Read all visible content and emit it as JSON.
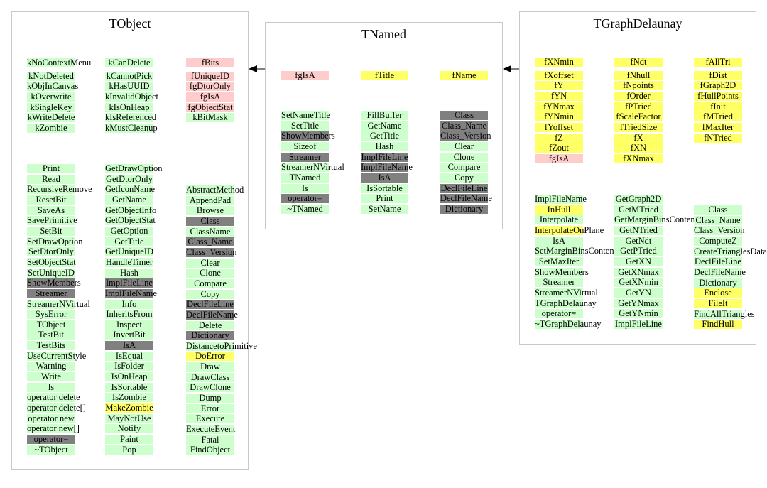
{
  "colors": {
    "green": "#ccffcc",
    "yellow": "#ffff66",
    "pink": "#ffcccc",
    "gray": "#808080"
  },
  "panels": [
    {
      "id": "tobject",
      "title": "TObject",
      "columns": [
        {
          "id": "tobject-enum-1",
          "items": [
            {
              "t": "kNoContextMenu",
              "c": "green"
            },
            {
              "t": "kNotDeleted",
              "c": "green"
            },
            {
              "t": "kObjInCanvas",
              "c": "green"
            },
            {
              "t": "kOverwrite",
              "c": "green"
            },
            {
              "t": "kSingleKey",
              "c": "green"
            },
            {
              "t": "kWriteDelete",
              "c": "green"
            },
            {
              "t": "kZombie",
              "c": "green"
            }
          ]
        },
        {
          "id": "tobject-enum-2",
          "items": [
            {
              "t": "kCanDelete",
              "c": "green"
            },
            {
              "t": "kCannotPick",
              "c": "green"
            },
            {
              "t": "kHasUUID",
              "c": "green"
            },
            {
              "t": "kInvalidObject",
              "c": "green"
            },
            {
              "t": "kIsOnHeap",
              "c": "green"
            },
            {
              "t": "kIsReferenced",
              "c": "green"
            },
            {
              "t": "kMustCleanup",
              "c": "green"
            }
          ]
        },
        {
          "id": "tobject-members",
          "items": [
            {
              "t": "fBits",
              "c": "pink"
            },
            {
              "t": "fUniqueID",
              "c": "pink"
            },
            {
              "t": "fgDtorOnly",
              "c": "pink"
            },
            {
              "t": "fgIsA",
              "c": "pink"
            },
            {
              "t": "fgObjectStat",
              "c": "pink"
            },
            {
              "t": "kBitMask",
              "c": "green"
            }
          ]
        },
        {
          "id": "tobject-methods-1",
          "items": [
            {
              "t": "Print",
              "c": "green"
            },
            {
              "t": "Read",
              "c": "green"
            },
            {
              "t": "RecursiveRemove",
              "c": "green"
            },
            {
              "t": "ResetBit",
              "c": "green"
            },
            {
              "t": "SaveAs",
              "c": "green"
            },
            {
              "t": "SavePrimitive",
              "c": "green"
            },
            {
              "t": "SetBit",
              "c": "green"
            },
            {
              "t": "SetDrawOption",
              "c": "green"
            },
            {
              "t": "SetDtorOnly",
              "c": "green"
            },
            {
              "t": "SetObjectStat",
              "c": "green"
            },
            {
              "t": "SetUniqueID",
              "c": "green"
            },
            {
              "t": "ShowMembers",
              "c": "gray"
            },
            {
              "t": "Streamer",
              "c": "gray"
            },
            {
              "t": "StreamerNVirtual",
              "c": "green"
            },
            {
              "t": "SysError",
              "c": "green"
            },
            {
              "t": "TObject",
              "c": "green"
            },
            {
              "t": "TestBit",
              "c": "green"
            },
            {
              "t": "TestBits",
              "c": "green"
            },
            {
              "t": "UseCurrentStyle",
              "c": "green"
            },
            {
              "t": "Warning",
              "c": "green"
            },
            {
              "t": "Write",
              "c": "green"
            },
            {
              "t": "ls",
              "c": "green"
            },
            {
              "t": "operator delete",
              "c": "green"
            },
            {
              "t": "operator delete[]",
              "c": "green"
            },
            {
              "t": "operator new",
              "c": "green"
            },
            {
              "t": "operator new[]",
              "c": "green"
            },
            {
              "t": "operator=",
              "c": "gray"
            },
            {
              "t": "~TObject",
              "c": "green"
            }
          ]
        },
        {
          "id": "tobject-methods-2",
          "items": [
            {
              "t": "GetDrawOption",
              "c": "green"
            },
            {
              "t": "GetDtorOnly",
              "c": "green"
            },
            {
              "t": "GetIconName",
              "c": "green"
            },
            {
              "t": "GetName",
              "c": "green"
            },
            {
              "t": "GetObjectInfo",
              "c": "green"
            },
            {
              "t": "GetObjectStat",
              "c": "green"
            },
            {
              "t": "GetOption",
              "c": "green"
            },
            {
              "t": "GetTitle",
              "c": "green"
            },
            {
              "t": "GetUniqueID",
              "c": "green"
            },
            {
              "t": "HandleTimer",
              "c": "green"
            },
            {
              "t": "Hash",
              "c": "green"
            },
            {
              "t": "ImplFileLine",
              "c": "gray"
            },
            {
              "t": "ImplFileName",
              "c": "gray"
            },
            {
              "t": "Info",
              "c": "green"
            },
            {
              "t": "InheritsFrom",
              "c": "green"
            },
            {
              "t": "Inspect",
              "c": "green"
            },
            {
              "t": "InvertBit",
              "c": "green"
            },
            {
              "t": "IsA",
              "c": "gray"
            },
            {
              "t": "IsEqual",
              "c": "green"
            },
            {
              "t": "IsFolder",
              "c": "green"
            },
            {
              "t": "IsOnHeap",
              "c": "green"
            },
            {
              "t": "IsSortable",
              "c": "green"
            },
            {
              "t": "IsZombie",
              "c": "green"
            },
            {
              "t": "MakeZombie",
              "c": "yellow"
            },
            {
              "t": "MayNotUse",
              "c": "green"
            },
            {
              "t": "Notify",
              "c": "green"
            },
            {
              "t": "Paint",
              "c": "green"
            },
            {
              "t": "Pop",
              "c": "green"
            }
          ]
        },
        {
          "id": "tobject-methods-3",
          "items": [
            {
              "t": "AbstractMethod",
              "c": "green"
            },
            {
              "t": "AppendPad",
              "c": "green"
            },
            {
              "t": "Browse",
              "c": "green"
            },
            {
              "t": "Class",
              "c": "gray"
            },
            {
              "t": "ClassName",
              "c": "green"
            },
            {
              "t": "Class_Name",
              "c": "gray"
            },
            {
              "t": "Class_Version",
              "c": "gray"
            },
            {
              "t": "Clear",
              "c": "green"
            },
            {
              "t": "Clone",
              "c": "green"
            },
            {
              "t": "Compare",
              "c": "green"
            },
            {
              "t": "Copy",
              "c": "green"
            },
            {
              "t": "DeclFileLine",
              "c": "gray"
            },
            {
              "t": "DeclFileName",
              "c": "gray"
            },
            {
              "t": "Delete",
              "c": "green"
            },
            {
              "t": "Dictionary",
              "c": "gray"
            },
            {
              "t": "DistancetoPrimitive",
              "c": "green"
            },
            {
              "t": "DoError",
              "c": "yellow"
            },
            {
              "t": "Draw",
              "c": "green"
            },
            {
              "t": "DrawClass",
              "c": "green"
            },
            {
              "t": "DrawClone",
              "c": "green"
            },
            {
              "t": "Dump",
              "c": "green"
            },
            {
              "t": "Error",
              "c": "green"
            },
            {
              "t": "Execute",
              "c": "green"
            },
            {
              "t": "ExecuteEvent",
              "c": "green"
            },
            {
              "t": "Fatal",
              "c": "green"
            },
            {
              "t": "FindObject",
              "c": "green"
            }
          ]
        }
      ]
    },
    {
      "id": "tnamed",
      "title": "TNamed",
      "columns": [
        {
          "id": "tnamed-members-1",
          "items": [
            {
              "t": "fgIsA",
              "c": "pink"
            }
          ]
        },
        {
          "id": "tnamed-members-2",
          "items": [
            {
              "t": "fTitle",
              "c": "yellow"
            }
          ]
        },
        {
          "id": "tnamed-members-3",
          "items": [
            {
              "t": "fName",
              "c": "yellow"
            }
          ]
        },
        {
          "id": "tnamed-methods-1",
          "items": [
            {
              "t": "SetNameTitle",
              "c": "green"
            },
            {
              "t": "SetTitle",
              "c": "green"
            },
            {
              "t": "ShowMembers",
              "c": "gray"
            },
            {
              "t": "Sizeof",
              "c": "green"
            },
            {
              "t": "Streamer",
              "c": "gray"
            },
            {
              "t": "StreamerNVirtual",
              "c": "green"
            },
            {
              "t": "TNamed",
              "c": "green"
            },
            {
              "t": "ls",
              "c": "green"
            },
            {
              "t": "operator=",
              "c": "gray"
            },
            {
              "t": "~TNamed",
              "c": "green"
            }
          ]
        },
        {
          "id": "tnamed-methods-2",
          "items": [
            {
              "t": "FillBuffer",
              "c": "green"
            },
            {
              "t": "GetName",
              "c": "green"
            },
            {
              "t": "GetTitle",
              "c": "green"
            },
            {
              "t": "Hash",
              "c": "green"
            },
            {
              "t": "ImplFileLine",
              "c": "gray"
            },
            {
              "t": "ImplFileName",
              "c": "gray"
            },
            {
              "t": "IsA",
              "c": "gray"
            },
            {
              "t": "IsSortable",
              "c": "green"
            },
            {
              "t": "Print",
              "c": "green"
            },
            {
              "t": "SetName",
              "c": "green"
            }
          ]
        },
        {
          "id": "tnamed-methods-3",
          "items": [
            {
              "t": "Class",
              "c": "gray"
            },
            {
              "t": "Class_Name",
              "c": "gray"
            },
            {
              "t": "Class_Version",
              "c": "gray"
            },
            {
              "t": "Clear",
              "c": "green"
            },
            {
              "t": "Clone",
              "c": "green"
            },
            {
              "t": "Compare",
              "c": "green"
            },
            {
              "t": "Copy",
              "c": "green"
            },
            {
              "t": "DeclFileLine",
              "c": "gray"
            },
            {
              "t": "DeclFileName",
              "c": "gray"
            },
            {
              "t": "Dictionary",
              "c": "gray"
            }
          ]
        }
      ]
    },
    {
      "id": "tgraphdelaunay",
      "title": "TGraphDelaunay",
      "columns": [
        {
          "id": "tgd-members-1",
          "items": [
            {
              "t": "fXNmin",
              "c": "yellow"
            },
            {
              "t": "fXoffset",
              "c": "yellow"
            },
            {
              "t": "fY",
              "c": "yellow"
            },
            {
              "t": "fYN",
              "c": "yellow"
            },
            {
              "t": "fYNmax",
              "c": "yellow"
            },
            {
              "t": "fYNmin",
              "c": "yellow"
            },
            {
              "t": "fYoffset",
              "c": "yellow"
            },
            {
              "t": "fZ",
              "c": "yellow"
            },
            {
              "t": "fZout",
              "c": "yellow"
            },
            {
              "t": "fgIsA",
              "c": "pink"
            }
          ]
        },
        {
          "id": "tgd-members-2",
          "items": [
            {
              "t": "fNdt",
              "c": "yellow"
            },
            {
              "t": "fNhull",
              "c": "yellow"
            },
            {
              "t": "fNpoints",
              "c": "yellow"
            },
            {
              "t": "fOrder",
              "c": "yellow"
            },
            {
              "t": "fPTried",
              "c": "yellow"
            },
            {
              "t": "fScaleFactor",
              "c": "yellow"
            },
            {
              "t": "fTriedSize",
              "c": "yellow"
            },
            {
              "t": "fX",
              "c": "yellow"
            },
            {
              "t": "fXN",
              "c": "yellow"
            },
            {
              "t": "fXNmax",
              "c": "yellow"
            }
          ]
        },
        {
          "id": "tgd-members-3",
          "items": [
            {
              "t": "fAllTri",
              "c": "yellow"
            },
            {
              "t": "fDist",
              "c": "yellow"
            },
            {
              "t": "fGraph2D",
              "c": "yellow"
            },
            {
              "t": "fHullPoints",
              "c": "yellow"
            },
            {
              "t": "fInit",
              "c": "yellow"
            },
            {
              "t": "fMTried",
              "c": "yellow"
            },
            {
              "t": "fMaxIter",
              "c": "yellow"
            },
            {
              "t": "fNTried",
              "c": "yellow"
            }
          ]
        },
        {
          "id": "tgd-methods-1",
          "items": [
            {
              "t": "ImplFileName",
              "c": "green"
            },
            {
              "t": "InHull",
              "c": "yellow"
            },
            {
              "t": "Interpolate",
              "c": "green"
            },
            {
              "t": "InterpolateOnPlane",
              "c": "yellow"
            },
            {
              "t": "IsA",
              "c": "green"
            },
            {
              "t": "SetMarginBinsContent",
              "c": "green"
            },
            {
              "t": "SetMaxIter",
              "c": "green"
            },
            {
              "t": "ShowMembers",
              "c": "green"
            },
            {
              "t": "Streamer",
              "c": "green"
            },
            {
              "t": "StreamerNVirtual",
              "c": "green"
            },
            {
              "t": "TGraphDelaunay",
              "c": "green"
            },
            {
              "t": "operator=",
              "c": "green"
            },
            {
              "t": "~TGraphDelaunay",
              "c": "green"
            }
          ]
        },
        {
          "id": "tgd-methods-2",
          "items": [
            {
              "t": "GetGraph2D",
              "c": "green"
            },
            {
              "t": "GetMTried",
              "c": "green"
            },
            {
              "t": "GetMarginBinsContent",
              "c": "green"
            },
            {
              "t": "GetNTried",
              "c": "green"
            },
            {
              "t": "GetNdt",
              "c": "green"
            },
            {
              "t": "GetPTried",
              "c": "green"
            },
            {
              "t": "GetXN",
              "c": "green"
            },
            {
              "t": "GetXNmax",
              "c": "green"
            },
            {
              "t": "GetXNmin",
              "c": "green"
            },
            {
              "t": "GetYN",
              "c": "green"
            },
            {
              "t": "GetYNmax",
              "c": "green"
            },
            {
              "t": "GetYNmin",
              "c": "green"
            },
            {
              "t": "ImplFileLine",
              "c": "green"
            }
          ]
        },
        {
          "id": "tgd-methods-3",
          "items": [
            {
              "t": "Class",
              "c": "green"
            },
            {
              "t": "Class_Name",
              "c": "green"
            },
            {
              "t": "Class_Version",
              "c": "green"
            },
            {
              "t": "ComputeZ",
              "c": "green"
            },
            {
              "t": "CreateTrianglesDataStructure",
              "c": "green"
            },
            {
              "t": "DeclFileLine",
              "c": "green"
            },
            {
              "t": "DeclFileName",
              "c": "green"
            },
            {
              "t": "Dictionary",
              "c": "green"
            },
            {
              "t": "Enclose",
              "c": "yellow"
            },
            {
              "t": "FileIt",
              "c": "yellow"
            },
            {
              "t": "FindAllTriangles",
              "c": "green"
            },
            {
              "t": "FindHull",
              "c": "yellow"
            }
          ]
        }
      ]
    }
  ]
}
